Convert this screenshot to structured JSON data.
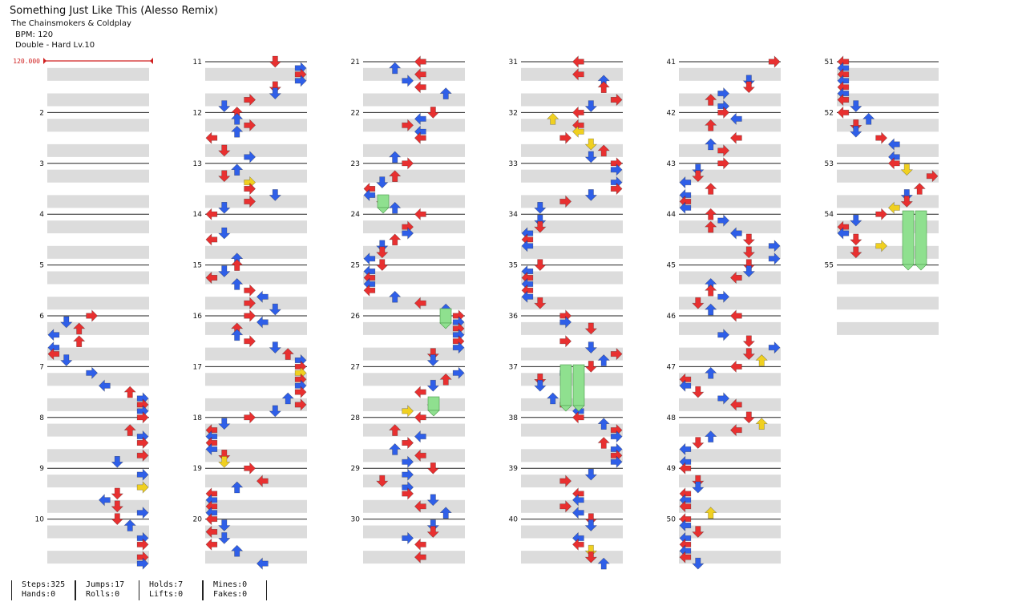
{
  "song": {
    "title": "Something Just Like This (Alesso Remix)",
    "artist": "The Chainsmokers & Coldplay",
    "bpm_text": "BPM: 120",
    "difficulty_text": "Double - Hard  Lv.10"
  },
  "bpm_marker": {
    "label": "120.000"
  },
  "chart": {
    "lanes": 8,
    "measures_total": 55,
    "measure_labels": [
      "2",
      "3",
      "4",
      "5",
      "6",
      "7",
      "8",
      "9",
      "10",
      "11",
      "12",
      "13",
      "14",
      "15",
      "16",
      "17",
      "18",
      "19",
      "20",
      "21",
      "22",
      "23",
      "24",
      "25",
      "26",
      "27",
      "28",
      "29",
      "30",
      "31",
      "32",
      "33",
      "34",
      "35",
      "36",
      "37",
      "38",
      "39",
      "40",
      "41",
      "42",
      "43",
      "44",
      "45",
      "46",
      "47",
      "48",
      "49",
      "50",
      "51",
      "52",
      "53",
      "54",
      "55"
    ]
  },
  "colors": {
    "quarter": "#e83030",
    "eighth": "#2f5fe8",
    "sixteenth": "#f0d020",
    "hold": "#8fe08f",
    "stripe": "#dcdcdc",
    "measure_line": "#222222"
  },
  "stats": {
    "steps": "Steps:325",
    "hands": "Hands:0",
    "jumps": "Jumps:17",
    "rolls": "Rolls:0",
    "holds": "Holds:7",
    "lifts": "Lifts:0",
    "mines": "Mines:0",
    "fakes": "Fakes:0"
  }
}
